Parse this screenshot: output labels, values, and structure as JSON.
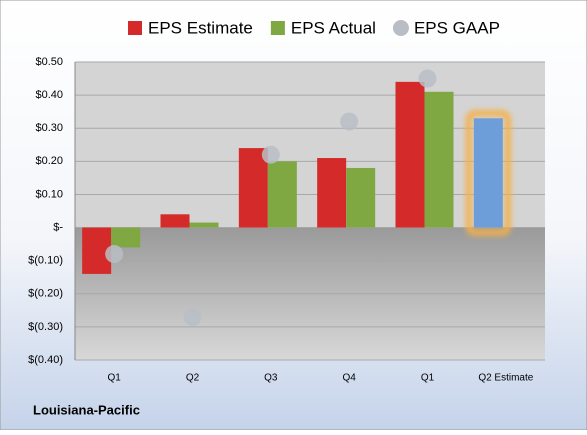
{
  "chart_data": {
    "type": "bar",
    "title": "Louisiana-Pacific",
    "categories": [
      "Q1",
      "Q2",
      "Q3",
      "Q4",
      "Q1",
      "Q2 Estimate"
    ],
    "series": [
      {
        "name": "EPS Estimate",
        "color": "#d42a2a",
        "values": [
          -0.14,
          0.04,
          0.24,
          0.21,
          0.44,
          0.33
        ],
        "point_colors": {
          "5": "#6d9ed9"
        },
        "highlight_glow": {
          "5": "#f5b04a"
        }
      },
      {
        "name": "EPS Actual",
        "color": "#7fa843",
        "values": [
          -0.06,
          0.015,
          0.2,
          0.18,
          0.41,
          null
        ]
      },
      {
        "name": "EPS GAAP",
        "color": "#b9bec6",
        "marker": "circle",
        "values": [
          -0.08,
          -0.27,
          0.22,
          0.32,
          0.45,
          null
        ]
      }
    ],
    "ylim": [
      -0.4,
      0.5
    ],
    "yticks": [
      {
        "value": 0.5,
        "label": "$0.50"
      },
      {
        "value": 0.4,
        "label": "$0.40"
      },
      {
        "value": 0.3,
        "label": "$0.30"
      },
      {
        "value": 0.2,
        "label": "$0.20"
      },
      {
        "value": 0.1,
        "label": "$0.10"
      },
      {
        "value": 0,
        "label": "$-"
      },
      {
        "value": -0.1,
        "label": "$(0.10)"
      },
      {
        "value": -0.2,
        "label": "$(0.20)"
      },
      {
        "value": -0.3,
        "label": "$(0.30)"
      },
      {
        "value": -0.4,
        "label": "$(0.40)"
      }
    ],
    "grid": true,
    "legend": "top"
  }
}
